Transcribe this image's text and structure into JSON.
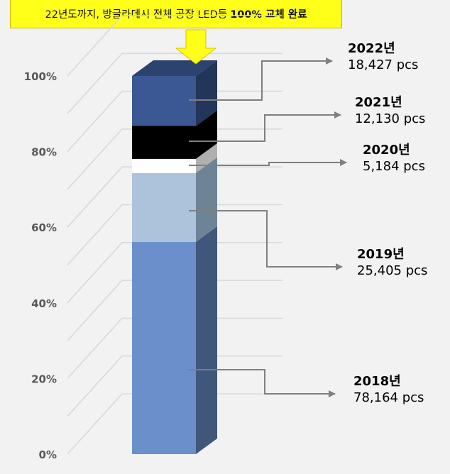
{
  "callout": {
    "text_normal": "22년도까지, 방글라데시 전체 공장 LED등",
    "text_bold": "100% 교체 완료"
  },
  "chart_data": {
    "type": "bar",
    "stacked": true,
    "percent_stacked": true,
    "three_d": true,
    "categories": [
      ""
    ],
    "ylim": [
      0,
      100
    ],
    "y_ticks": [
      "0%",
      "20%",
      "40%",
      "60%",
      "80%",
      "100%"
    ],
    "grid": true,
    "series": [
      {
        "name": "2018년",
        "value": 78164,
        "value_label": "78,164 pcs",
        "color": "#6a8fcb"
      },
      {
        "name": "2019년",
        "value": 25405,
        "value_label": "25,405 pcs",
        "color": "#adc3dc"
      },
      {
        "name": "2020년",
        "value": 5184,
        "value_label": "5,184 pcs",
        "color": "#ffffff"
      },
      {
        "name": "2021년",
        "value": 12130,
        "value_label": "12,130 pcs",
        "color": "#000000"
      },
      {
        "name": "2022년",
        "value": 18427,
        "value_label": "18,427 pcs",
        "color": "#3b5894"
      }
    ]
  }
}
